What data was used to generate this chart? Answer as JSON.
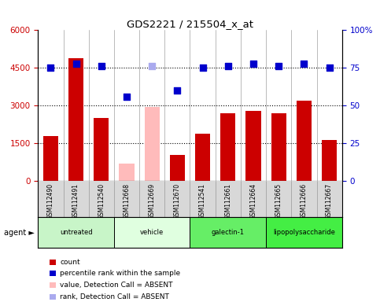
{
  "title": "GDS2221 / 215504_x_at",
  "samples": [
    "GSM112490",
    "GSM112491",
    "GSM112540",
    "GSM112668",
    "GSM112669",
    "GSM112670",
    "GSM112541",
    "GSM112661",
    "GSM112664",
    "GSM112665",
    "GSM112666",
    "GSM112667"
  ],
  "counts": [
    1800,
    4900,
    2500,
    700,
    2950,
    1050,
    1900,
    2700,
    2800,
    2700,
    3200,
    1650
  ],
  "absent_count_idx": [
    3,
    4
  ],
  "percentile_ranks": [
    75,
    78,
    76,
    56,
    76,
    60,
    75,
    76,
    78,
    76,
    78,
    75
  ],
  "absent_rank_idx": [
    4
  ],
  "agents": [
    {
      "label": "untreated",
      "start": 0,
      "end": 3,
      "color": "#c8f5c8"
    },
    {
      "label": "vehicle",
      "start": 3,
      "end": 6,
      "color": "#e0ffe0"
    },
    {
      "label": "galectin-1",
      "start": 6,
      "end": 9,
      "color": "#66ee66"
    },
    {
      "label": "lipopolysaccharide",
      "start": 9,
      "end": 12,
      "color": "#44ee44"
    }
  ],
  "bar_color_normal": "#cc0000",
  "bar_color_absent": "#ffbbbb",
  "dot_color_normal": "#0000cc",
  "dot_color_absent": "#aaaaee",
  "ylim_left": [
    0,
    6000
  ],
  "ylim_right": [
    0,
    100
  ],
  "yticks_left": [
    0,
    1500,
    3000,
    4500,
    6000
  ],
  "ytick_labels_left": [
    "0",
    "1500",
    "3000",
    "4500",
    "6000"
  ],
  "yticks_right": [
    0,
    25,
    50,
    75,
    100
  ],
  "ytick_labels_right": [
    "0",
    "25",
    "50",
    "75",
    "100%"
  ],
  "left_tick_color": "#cc0000",
  "right_tick_color": "#0000cc",
  "grid_dotted_vals": [
    1500,
    3000,
    4500
  ],
  "dot_size": 35,
  "bar_width": 0.6,
  "xticklabel_bg": "#d8d8d8",
  "legend_items": [
    {
      "color": "#cc0000",
      "label": "count"
    },
    {
      "color": "#0000cc",
      "label": "percentile rank within the sample"
    },
    {
      "color": "#ffbbbb",
      "label": "value, Detection Call = ABSENT"
    },
    {
      "color": "#aaaaee",
      "label": "rank, Detection Call = ABSENT"
    }
  ]
}
